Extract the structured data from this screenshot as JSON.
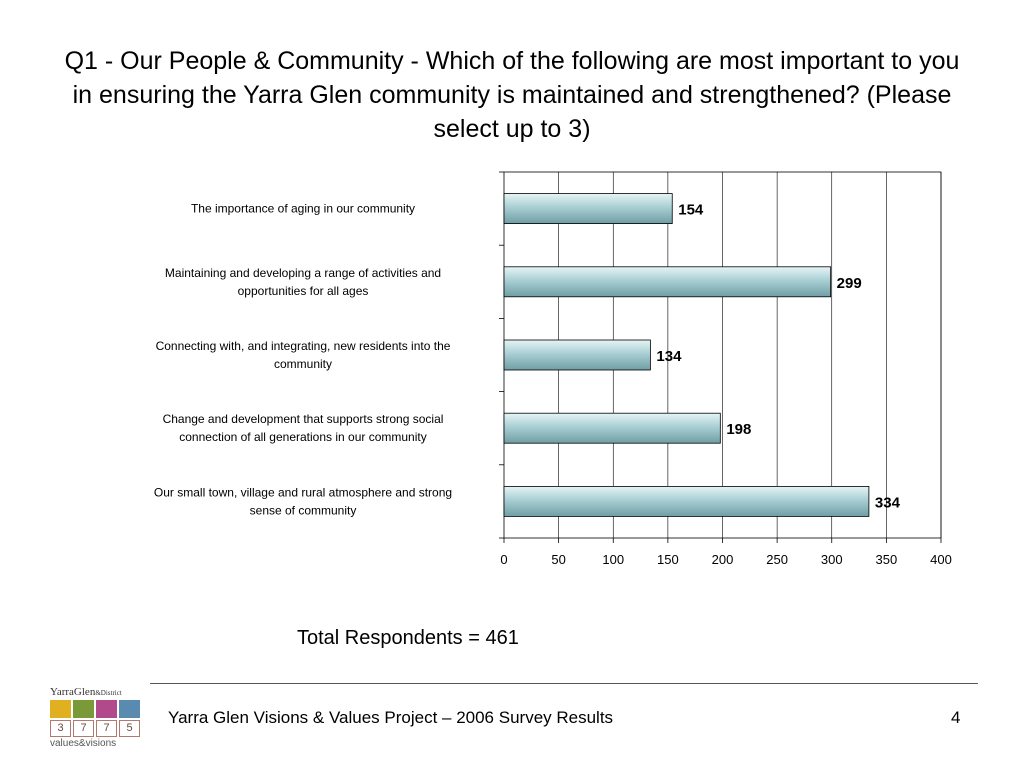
{
  "slide": {
    "title": "Q1 - Our People & Community - Which of the following are most important to you in ensuring the Yarra Glen community is maintained and strengthened? (Please select up to 3)",
    "total_respondents": "Total Respondents = 461",
    "footer": "Yarra Glen Visions & Values Project – 2006 Survey Results",
    "page_number": "4"
  },
  "logo": {
    "name": "YarraGlen",
    "suffix": "&District",
    "digits": [
      "3",
      "7",
      "7",
      "5"
    ],
    "tagline": "values&visions",
    "tile_colors": [
      "#e0b020",
      "#7a9a3a",
      "#b04a8a",
      "#5a8ab0"
    ]
  },
  "chart_data": {
    "type": "bar",
    "orientation": "horizontal",
    "title": "",
    "xlabel": "",
    "ylabel": "",
    "categories": [
      "The importance of aging in our community",
      "Maintaining and developing a range of activities and opportunities for all ages",
      "Connecting with, and integrating, new residents into the community",
      "Change and development that supports strong social connection of all generations in our community",
      "Our small town, village and rural atmosphere and strong sense of community"
    ],
    "category_lines": [
      [
        "The importance of aging in our community"
      ],
      [
        "Maintaining and developing a range of activities and",
        "opportunities for all ages"
      ],
      [
        "Connecting with, and integrating, new residents into the",
        "community"
      ],
      [
        "Change and development that supports strong social",
        "connection of all generations in our community"
      ],
      [
        "Our small town, village and rural atmosphere and strong",
        "sense of community"
      ]
    ],
    "values": [
      154,
      299,
      134,
      198,
      334
    ],
    "xlim": [
      0,
      400
    ],
    "xticks": [
      0,
      50,
      100,
      150,
      200,
      250,
      300,
      350,
      400
    ],
    "grid": true,
    "legend": "none",
    "bar_color": "#a9cfd4"
  }
}
